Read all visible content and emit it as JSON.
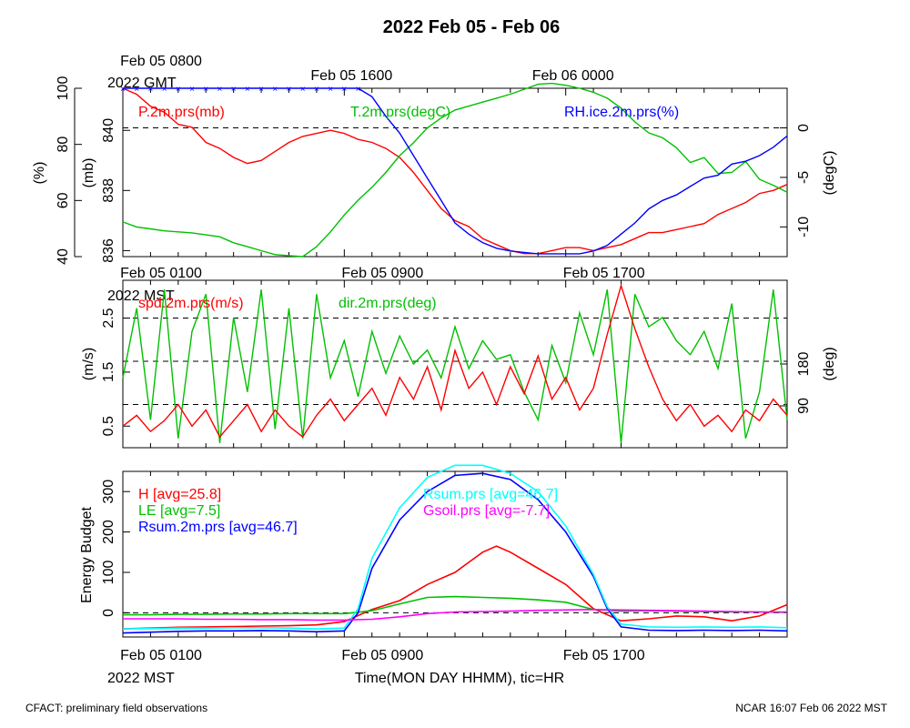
{
  "title": "2022 Feb 05 - Feb 06",
  "footer_left": "CFACT: preliminary field observations",
  "footer_right": "NCAR 16:07 Feb 06 2022 MST",
  "xlabel": "Time(MON DAY HHMM), tic=HR",
  "colors": {
    "red": "#ff0000",
    "green": "#00c000",
    "blue": "#0000ff",
    "cyan": "#00ffff",
    "magenta": "#ff00ff",
    "black": "#000000"
  },
  "top_axis": {
    "ticks": [
      "Feb 05 0800",
      "Feb 05 1600",
      "Feb 06 0000"
    ],
    "year_label": "2022 GMT"
  },
  "bottom_axis": {
    "ticks": [
      "Feb 05 0100",
      "Feb 05 0900",
      "Feb 05 1700"
    ],
    "year_label": "2022 MST"
  },
  "mid_axis": {
    "ticks": [
      "Feb 05 0100",
      "Feb 05 0900",
      "Feb 05 1700"
    ],
    "year_label": "2022 MST"
  },
  "chart_data": [
    {
      "type": "line",
      "panel": "top",
      "x_range_hours_mst": [
        0,
        24
      ],
      "axes": [
        {
          "side": "left-outer",
          "label": "(%)",
          "ticks": [
            "40",
            "60",
            "80",
            "100"
          ],
          "range": [
            40,
            100
          ]
        },
        {
          "side": "left-inner",
          "label": "(mb)",
          "ticks": [
            "836",
            "838",
            "840"
          ],
          "range": [
            835.8,
            841.4
          ]
        },
        {
          "side": "right",
          "label": "(degC)",
          "ticks": [
            "-10",
            "-5",
            "0"
          ],
          "range": [
            -13,
            4
          ]
        }
      ],
      "reference_lines": [
        0
      ],
      "series": [
        {
          "name": "P.2m.prs(mb)",
          "color": "red",
          "axis": "left-inner",
          "x": [
            0,
            0.5,
            1,
            1.5,
            2,
            2.5,
            3,
            3.5,
            4,
            4.5,
            5,
            5.5,
            6,
            6.5,
            7,
            7.5,
            8,
            8.5,
            9,
            9.5,
            10,
            10.5,
            11,
            11.5,
            12,
            12.5,
            13,
            13.5,
            14,
            14.5,
            15,
            15.5,
            16,
            16.5,
            17,
            17.5,
            18,
            18.5,
            19,
            19.5,
            20,
            20.5,
            21,
            21.5,
            22,
            22.5,
            23,
            23.5,
            24
          ],
          "y": [
            841.4,
            841.2,
            840.8,
            840.6,
            840.2,
            840.1,
            839.6,
            839.4,
            839.1,
            838.9,
            839.0,
            839.3,
            839.6,
            839.8,
            839.9,
            840.0,
            839.9,
            839.7,
            839.6,
            839.4,
            839.1,
            838.6,
            838.0,
            837.4,
            837.0,
            836.8,
            836.4,
            836.2,
            836.0,
            835.9,
            835.9,
            836.0,
            836.1,
            836.1,
            836.0,
            836.1,
            836.2,
            836.4,
            836.6,
            836.6,
            836.7,
            836.8,
            836.9,
            837.2,
            837.4,
            837.6,
            837.9,
            838.0,
            838.2
          ]
        },
        {
          "name": "T.2m.prs(degC)",
          "color": "green",
          "axis": "right",
          "x": [
            0,
            0.5,
            1,
            1.5,
            2,
            2.5,
            3,
            3.5,
            4,
            4.5,
            5,
            5.5,
            6,
            6.5,
            7,
            7.5,
            8,
            8.5,
            9,
            9.5,
            10,
            10.5,
            11,
            11.5,
            12,
            12.5,
            13,
            13.5,
            14,
            14.5,
            15,
            15.5,
            16,
            16.5,
            17,
            17.5,
            18,
            18.5,
            19,
            19.5,
            20,
            20.5,
            21,
            21.5,
            22,
            22.5,
            23,
            23.5,
            24
          ],
          "y": [
            -9.5,
            -10.0,
            -10.2,
            -10.4,
            -10.5,
            -10.6,
            -10.8,
            -11.0,
            -11.6,
            -12.0,
            -12.4,
            -12.8,
            -12.9,
            -13.0,
            -12.0,
            -10.5,
            -8.8,
            -7.3,
            -6.0,
            -4.5,
            -2.8,
            -1.5,
            0.0,
            1.0,
            1.8,
            2.2,
            2.6,
            3.0,
            3.4,
            3.9,
            4.4,
            4.5,
            4.3,
            4.0,
            3.6,
            3.0,
            2.0,
            0.6,
            -0.5,
            -1.0,
            -2.0,
            -3.5,
            -3.0,
            -4.6,
            -4.5,
            -3.4,
            -5.2,
            -5.8,
            -6.5
          ]
        },
        {
          "name": "RH.ice.2m.prs(%)",
          "color": "blue",
          "axis": "left-outer",
          "x": [
            0,
            0.5,
            1,
            1.5,
            2,
            2.5,
            3,
            3.5,
            4,
            4.5,
            5,
            5.5,
            6,
            6.5,
            7,
            7.5,
            8,
            8.5,
            9,
            9.5,
            10,
            10.5,
            11,
            11.5,
            12,
            12.5,
            13,
            13.5,
            14,
            14.5,
            15,
            15.5,
            16,
            16.5,
            17,
            17.5,
            18,
            18.5,
            19,
            19.5,
            20,
            20.5,
            21,
            21.5,
            22,
            22.5,
            23,
            23.5,
            24
          ],
          "y": [
            100,
            100,
            100,
            100,
            100,
            100,
            100,
            100,
            100,
            100,
            100,
            100,
            100,
            100,
            100,
            100,
            100,
            100,
            97,
            90,
            84,
            76,
            68,
            60,
            52,
            48,
            45,
            43,
            42,
            41.5,
            41,
            41,
            41,
            41,
            42,
            44,
            48,
            52,
            57,
            60,
            62,
            65,
            68,
            69,
            73,
            74,
            76,
            79,
            83
          ]
        }
      ]
    },
    {
      "type": "line",
      "panel": "middle",
      "x_range_hours_mst": [
        0,
        24
      ],
      "axes": [
        {
          "side": "left",
          "label": "(m/s)",
          "ticks": [
            "0.5",
            "1.5",
            "2.5"
          ],
          "range": [
            0.1,
            3.2
          ]
        },
        {
          "side": "right",
          "label": "(deg)",
          "ticks": [
            "90",
            "180"
          ],
          "range": [
            0,
            360
          ]
        }
      ],
      "reference_lines": [
        2.5,
        1.7,
        0.9
      ],
      "series": [
        {
          "name": "spd.2m.prs(m/s)",
          "color": "red",
          "axis": "left",
          "x": [
            0,
            0.5,
            1,
            1.5,
            2,
            2.5,
            3,
            3.5,
            4,
            4.5,
            5,
            5.5,
            6,
            6.5,
            7,
            7.5,
            8,
            8.5,
            9,
            9.5,
            10,
            10.5,
            11,
            11.5,
            12,
            12.5,
            13,
            13.5,
            14,
            14.5,
            15,
            15.5,
            16,
            16.5,
            17,
            17.5,
            18,
            18.5,
            19,
            19.5,
            20,
            20.5,
            21,
            21.5,
            22,
            22.5,
            23,
            23.5,
            24
          ],
          "y": [
            0.5,
            0.7,
            0.4,
            0.6,
            0.9,
            0.5,
            0.8,
            0.3,
            0.6,
            0.9,
            0.4,
            0.8,
            0.5,
            0.3,
            0.7,
            1.0,
            0.6,
            0.9,
            1.2,
            0.7,
            1.4,
            1.0,
            1.6,
            0.8,
            1.9,
            1.2,
            1.5,
            0.9,
            1.6,
            1.1,
            1.8,
            1.0,
            1.4,
            0.8,
            1.2,
            2.2,
            3.1,
            2.3,
            1.6,
            1.0,
            0.6,
            0.9,
            0.5,
            0.7,
            0.4,
            0.8,
            0.6,
            1.0,
            0.7
          ]
        },
        {
          "name": "dir.2m.prs(deg)",
          "color": "green",
          "axis": "right",
          "x": [
            0,
            0.5,
            1,
            1.5,
            2,
            2.5,
            3,
            3.5,
            4,
            4.5,
            5,
            5.5,
            6,
            6.5,
            7,
            7.5,
            8,
            8.5,
            9,
            9.5,
            10,
            10.5,
            11,
            11.5,
            12,
            12.5,
            13,
            13.5,
            14,
            14.5,
            15,
            15.5,
            16,
            16.5,
            17,
            17.5,
            18,
            18.5,
            19,
            19.5,
            20,
            20.5,
            21,
            21.5,
            22,
            22.5,
            23,
            23.5,
            24
          ],
          "y": [
            150,
            300,
            60,
            340,
            20,
            250,
            330,
            10,
            280,
            120,
            340,
            40,
            300,
            20,
            330,
            150,
            230,
            110,
            250,
            160,
            240,
            180,
            210,
            150,
            260,
            170,
            230,
            190,
            200,
            120,
            60,
            220,
            140,
            290,
            200,
            340,
            10,
            330,
            260,
            280,
            230,
            200,
            250,
            170,
            310,
            20,
            120,
            340,
            60
          ]
        }
      ]
    },
    {
      "type": "line",
      "panel": "bottom",
      "x_range_hours_mst": [
        0,
        24
      ],
      "ylabel": "Energy Budget",
      "axes": [
        {
          "side": "left",
          "label": "Energy Budget",
          "ticks": [
            "0",
            "100",
            "200",
            "300"
          ],
          "range": [
            -60,
            350
          ]
        }
      ],
      "reference_lines": [
        0
      ],
      "series": [
        {
          "name": "H [avg=25.8]",
          "color": "red",
          "legend_group": "left",
          "x": [
            0,
            1,
            2,
            3,
            4,
            5,
            6,
            7,
            8,
            9,
            10,
            11,
            12,
            12.5,
            13,
            13.5,
            14,
            15,
            16,
            17,
            18,
            19,
            20,
            21,
            22,
            23,
            24
          ],
          "y": [
            -40,
            -38,
            -36,
            -35,
            -34,
            -33,
            -32,
            -30,
            -22,
            8,
            30,
            70,
            100,
            125,
            150,
            165,
            150,
            110,
            70,
            10,
            -20,
            -15,
            -8,
            -10,
            -20,
            -8,
            20
          ]
        },
        {
          "name": "LE [avg=7.5]",
          "color": "green",
          "legend_group": "left",
          "x": [
            0,
            1,
            2,
            3,
            4,
            5,
            6,
            7,
            8,
            9,
            10,
            11,
            12,
            13,
            14,
            15,
            16,
            17,
            18,
            19,
            20,
            21,
            22,
            23,
            24
          ],
          "y": [
            -5,
            -5,
            -4,
            -4,
            -3,
            -3,
            -2,
            -2,
            -2,
            5,
            22,
            38,
            40,
            38,
            36,
            32,
            26,
            8,
            4,
            5,
            4,
            3,
            2,
            2,
            1
          ]
        },
        {
          "name": "Rsum.2m.prs [avg=46.7]",
          "color": "blue",
          "legend_group": "left",
          "x": [
            0,
            1,
            2,
            3,
            4,
            5,
            6,
            7,
            8,
            8.5,
            9,
            10,
            11,
            12,
            13,
            14,
            15,
            16,
            17,
            17.5,
            18,
            19,
            20,
            21,
            22,
            23,
            24
          ],
          "y": [
            -50,
            -48,
            -46,
            -45,
            -45,
            -44,
            -45,
            -47,
            -45,
            0,
            110,
            230,
            300,
            340,
            345,
            330,
            280,
            200,
            90,
            10,
            -35,
            -43,
            -44,
            -43,
            -44,
            -43,
            -45
          ]
        },
        {
          "name": "Rsum.prs [avg=46.7]",
          "color": "cyan",
          "legend_group": "right",
          "x": [
            0,
            1,
            2,
            3,
            4,
            5,
            6,
            7,
            8,
            8.5,
            9,
            10,
            11,
            12,
            13,
            14,
            15,
            16,
            17,
            17.5,
            18,
            19,
            20,
            21,
            22,
            23,
            24
          ],
          "y": [
            -40,
            -39,
            -38,
            -38,
            -37,
            -37,
            -38,
            -40,
            -38,
            10,
            135,
            260,
            335,
            365,
            365,
            345,
            300,
            215,
            95,
            15,
            -28,
            -35,
            -36,
            -35,
            -36,
            -35,
            -37
          ]
        },
        {
          "name": "Gsoil.prs [avg=-7.7]",
          "color": "magenta",
          "legend_group": "right",
          "x": [
            0,
            1,
            2,
            3,
            4,
            5,
            6,
            7,
            8,
            9,
            10,
            11,
            12,
            13,
            14,
            15,
            16,
            17,
            18,
            19,
            20,
            21,
            22,
            23,
            24
          ],
          "y": [
            -15,
            -15,
            -15,
            -16,
            -16,
            -17,
            -17,
            -18,
            -18,
            -16,
            -10,
            -2,
            2,
            3,
            4,
            6,
            7,
            8,
            7,
            6,
            5,
            4,
            3,
            2,
            2
          ]
        }
      ]
    }
  ]
}
